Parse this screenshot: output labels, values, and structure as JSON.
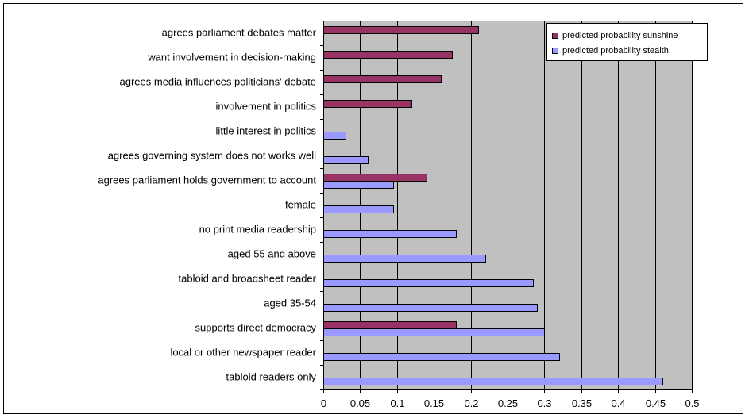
{
  "chart_data": {
    "type": "bar",
    "orientation": "horizontal",
    "categories": [
      "agrees parliament debates matter",
      "want involvement in decision-making",
      "agrees media influences politicians' debate",
      "involvement in politics",
      "little interest in politics",
      "agrees governing system does not works well",
      "agrees parliament holds government to account",
      "female",
      "no print media readership",
      "aged 55 and above",
      "tabloid and broadsheet reader",
      "aged 35-54",
      "supports direct democracy",
      "local or other newspaper reader",
      "tabloid readers only"
    ],
    "series": [
      {
        "name": "predicted probability sunshine",
        "color": "#993366",
        "values": [
          0.21,
          0.175,
          0.16,
          0.12,
          null,
          null,
          0.14,
          null,
          null,
          null,
          null,
          null,
          0.18,
          null,
          null
        ]
      },
      {
        "name": "predicted probability stealth",
        "color": "#9999ff",
        "values": [
          null,
          null,
          null,
          null,
          0.03,
          0.06,
          0.095,
          0.095,
          0.18,
          0.22,
          0.285,
          0.29,
          0.3,
          0.32,
          0.46
        ]
      }
    ],
    "xlim": [
      0,
      0.5
    ],
    "xticks": [
      "0",
      "0.05",
      "0.1",
      "0.15",
      "0.2",
      "0.25",
      "0.3",
      "0.35",
      "0.4",
      "0.45",
      "0.5"
    ],
    "grid": true,
    "plot_background": "#c0c0c0",
    "legend_position": "top-right",
    "title": "",
    "xlabel": "",
    "ylabel": ""
  }
}
